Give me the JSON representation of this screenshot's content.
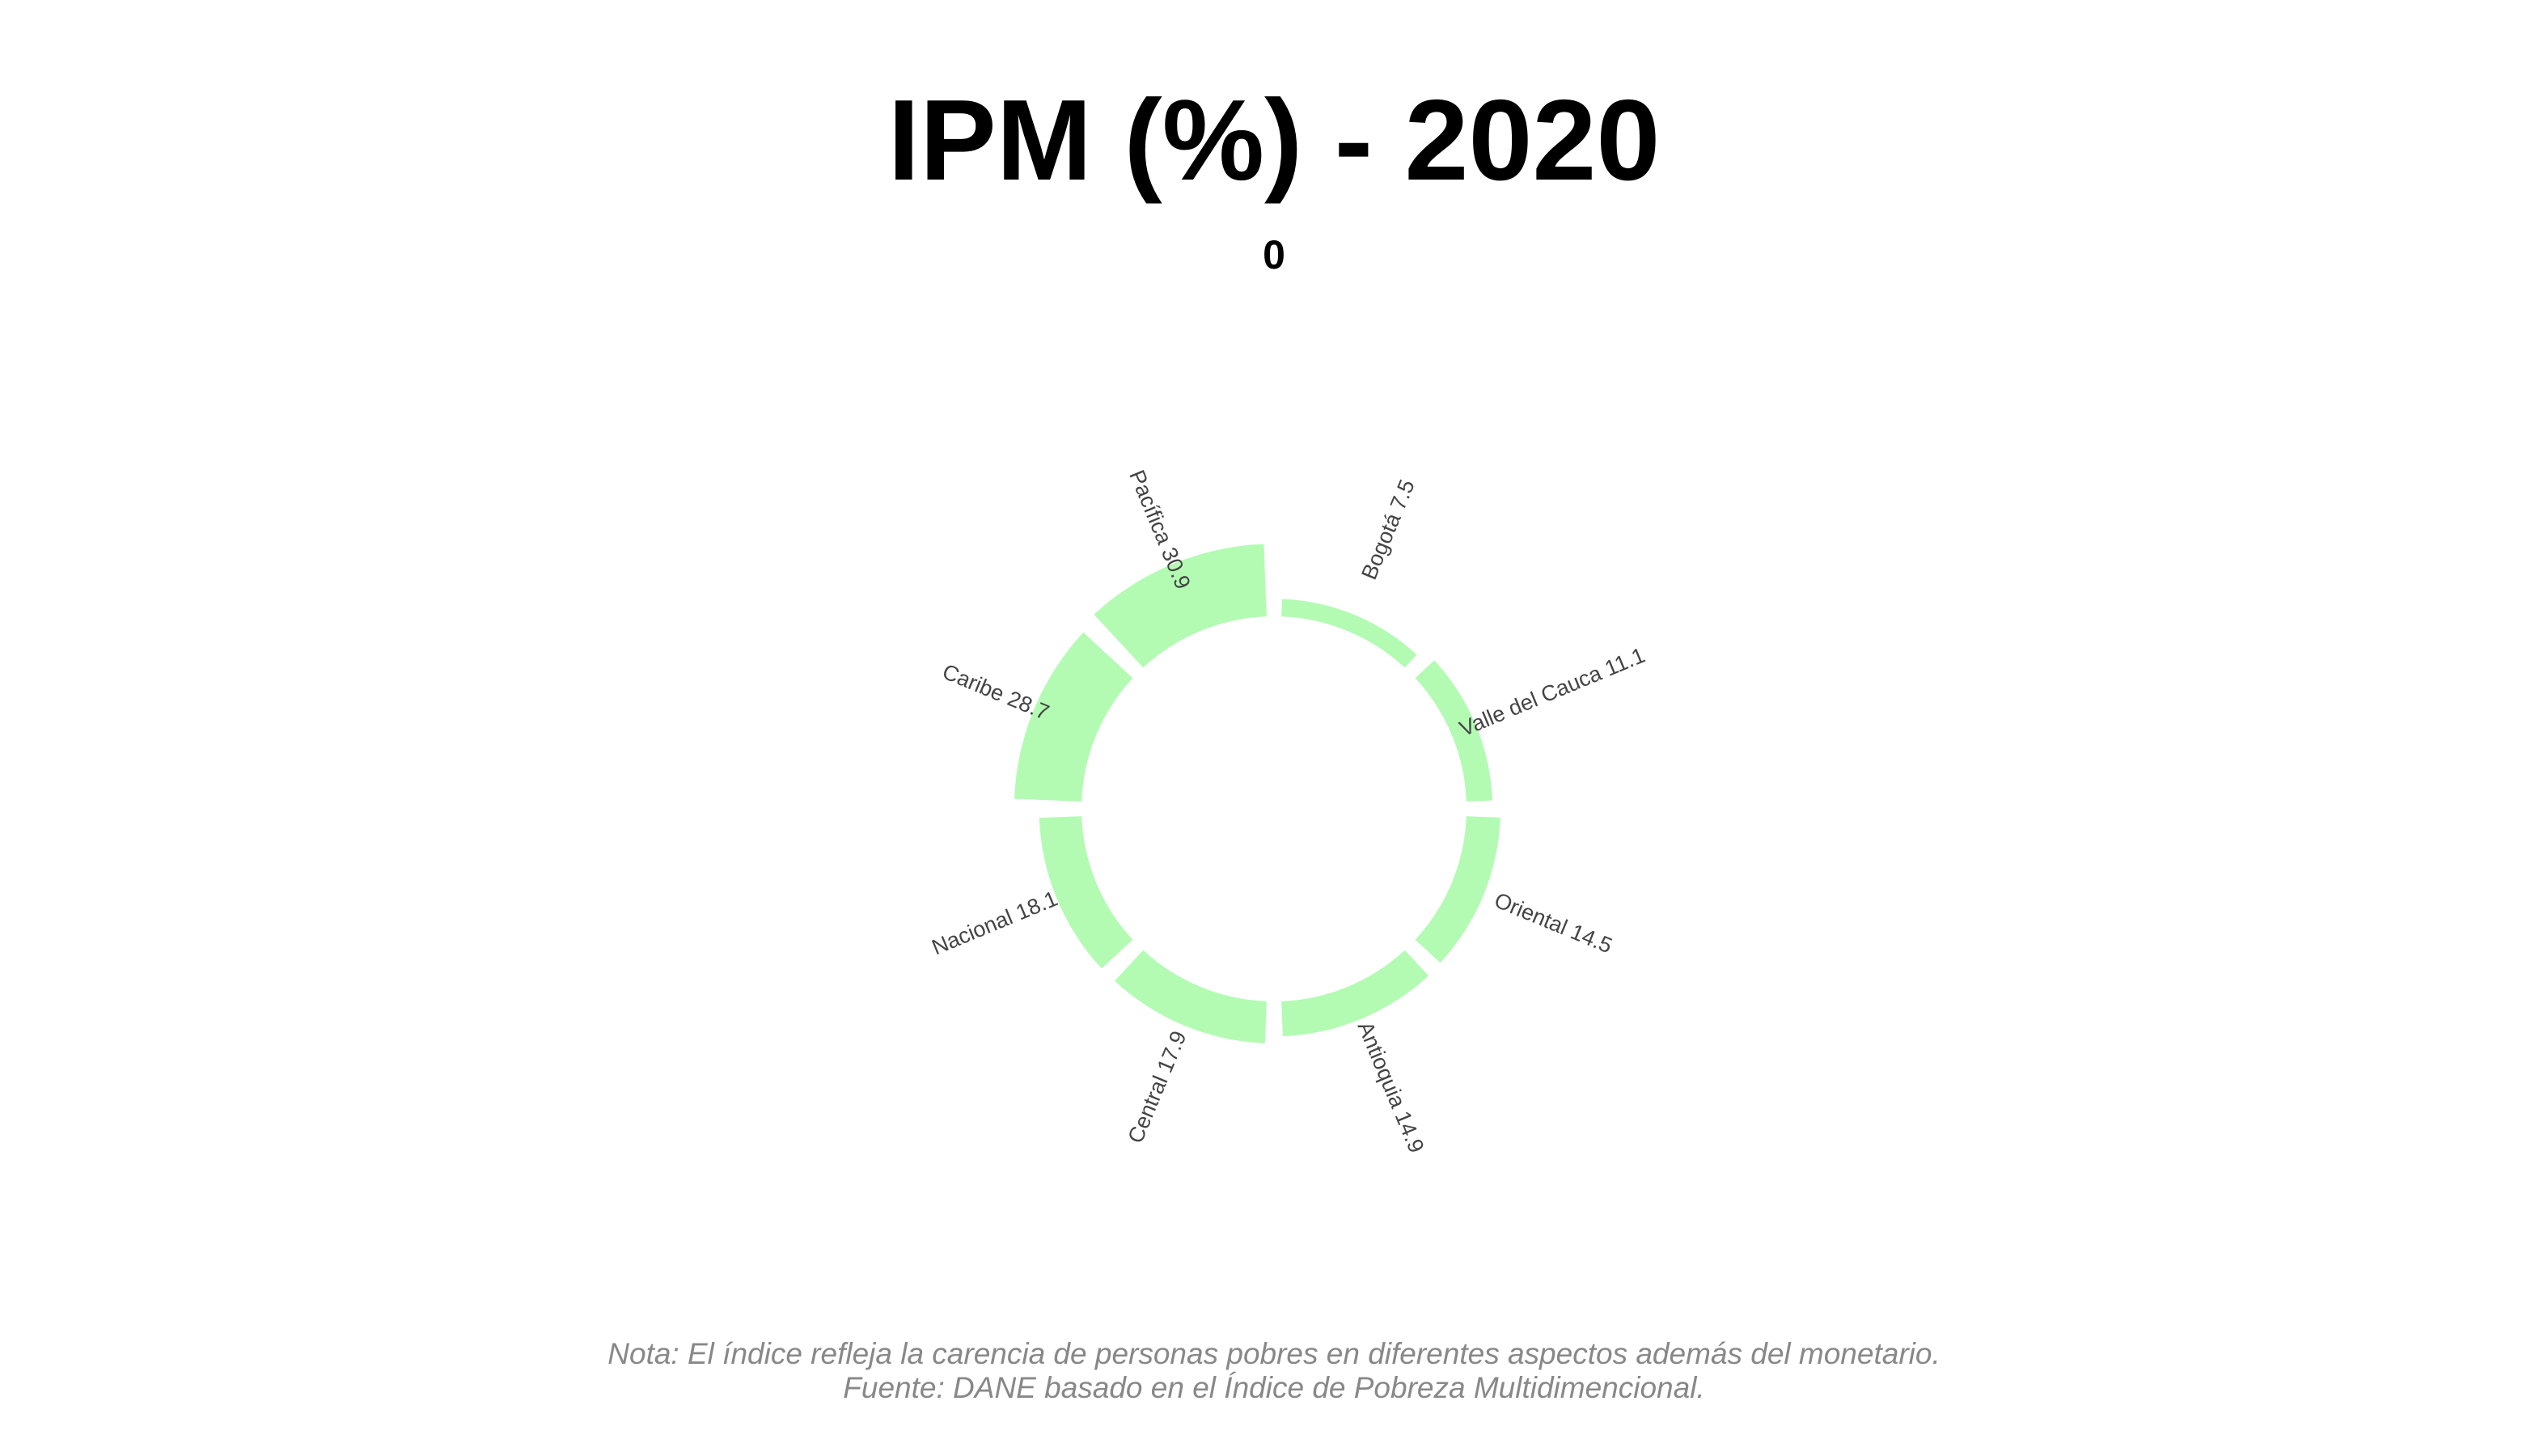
{
  "chart_data": {
    "type": "radial-bar",
    "title": "IPM (%) - 2020",
    "subtitle": "0",
    "series_color": "#b3fbb3",
    "categories": [
      "Bogotá",
      "Valle del Cauca",
      "Oriental",
      "Antioquia",
      "Central",
      "Nacional",
      "Caribe",
      "Pacífica"
    ],
    "values": [
      7.5,
      11.1,
      14.5,
      14.9,
      17.9,
      18.1,
      28.7,
      30.9
    ],
    "value_labels": [
      "7.5",
      "11.1",
      "14.5",
      "14.9",
      "17.9",
      "18.1",
      "28.7",
      "30.9"
    ],
    "label_texts": [
      "Bogotá 7.5",
      "Valle del Cauca 11.1",
      "Oriental 14.5",
      "Antioquia 14.9",
      "Central 17.9",
      "Nacional 18.1",
      "Caribe 28.7",
      "Pacífica 30.9"
    ]
  },
  "footnote": {
    "line1": "Nota: El índice refleja la carencia de personas pobres en diferentes aspectos además del monetario.",
    "line2": "Fuente: DANE basado en el Índice de Pobreza Multidimencional."
  }
}
